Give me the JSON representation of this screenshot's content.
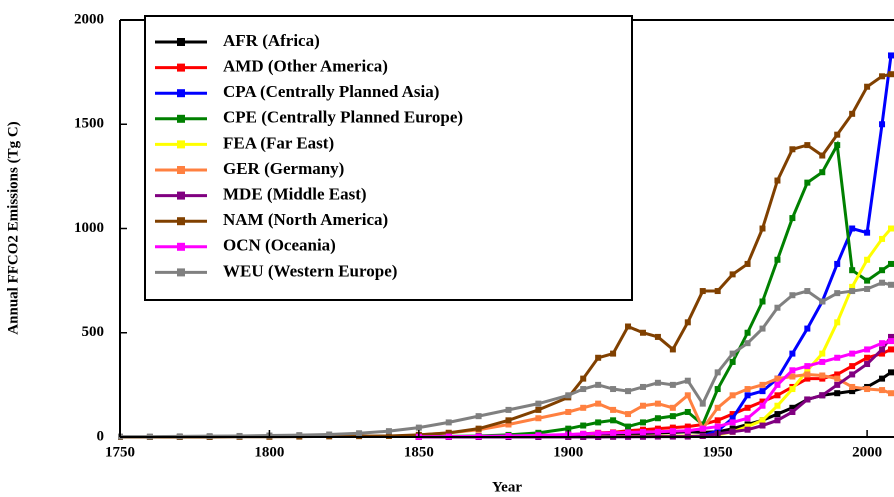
{
  "chart_data": {
    "type": "line",
    "x_label": "Year",
    "y_label": "Annual FFCO2 Emissions (Tg C)",
    "x": [
      1750,
      1760,
      1770,
      1780,
      1790,
      1800,
      1810,
      1820,
      1830,
      1840,
      1850,
      1860,
      1870,
      1880,
      1890,
      1900,
      1905,
      1910,
      1915,
      1920,
      1925,
      1930,
      1935,
      1940,
      1945,
      1950,
      1955,
      1960,
      1965,
      1970,
      1975,
      1980,
      1985,
      1990,
      1995,
      2000,
      2005,
      2008
    ],
    "xlim": [
      1750,
      2009
    ],
    "xticks": [
      1750,
      1800,
      1850,
      1900,
      1950,
      2000
    ],
    "ylim": [
      0,
      2000
    ],
    "yticks": [
      0,
      500,
      1000,
      1500,
      2000
    ],
    "legend": "upper left",
    "series": [
      {
        "name": "AFR (Africa)",
        "color": "#000000",
        "values": [
          null,
          null,
          null,
          null,
          null,
          null,
          null,
          null,
          null,
          null,
          1,
          1,
          2,
          3,
          5,
          7,
          9,
          12,
          13,
          15,
          17,
          20,
          22,
          25,
          22,
          25,
          40,
          60,
          80,
          110,
          140,
          180,
          200,
          210,
          220,
          240,
          280,
          310
        ]
      },
      {
        "name": "AMD (Other America)",
        "color": "#ff0000",
        "values": [
          null,
          null,
          null,
          null,
          null,
          null,
          null,
          null,
          null,
          null,
          1,
          2,
          3,
          5,
          7,
          10,
          15,
          20,
          22,
          30,
          35,
          40,
          45,
          50,
          60,
          80,
          110,
          140,
          170,
          200,
          240,
          280,
          280,
          300,
          340,
          380,
          400,
          420
        ]
      },
      {
        "name": "CPA (Centrally Planned Asia)",
        "color": "#0000ff",
        "values": [
          null,
          null,
          null,
          null,
          null,
          null,
          null,
          null,
          null,
          null,
          0,
          0,
          0,
          0,
          0,
          1,
          1,
          1,
          2,
          2,
          3,
          3,
          4,
          5,
          5,
          30,
          90,
          200,
          220,
          280,
          400,
          520,
          650,
          830,
          1000,
          980,
          1500,
          1830
        ]
      },
      {
        "name": "CPE (Centrally Planned Europe)",
        "color": "#008000",
        "values": [
          null,
          null,
          null,
          null,
          null,
          null,
          null,
          null,
          null,
          null,
          1,
          3,
          5,
          10,
          20,
          40,
          55,
          70,
          80,
          50,
          70,
          90,
          100,
          120,
          60,
          230,
          360,
          500,
          650,
          850,
          1050,
          1220,
          1270,
          1400,
          800,
          750,
          800,
          830
        ]
      },
      {
        "name": "FEA (Far East)",
        "color": "#ffff00",
        "values": [
          null,
          null,
          null,
          null,
          null,
          null,
          null,
          null,
          null,
          null,
          0,
          0,
          0,
          0,
          1,
          1,
          1,
          2,
          2,
          3,
          3,
          4,
          4,
          5,
          5,
          10,
          25,
          50,
          80,
          150,
          230,
          320,
          400,
          550,
          720,
          850,
          950,
          1000
        ]
      },
      {
        "name": "GER (Germany)",
        "color": "#ff8040",
        "values": [
          null,
          null,
          null,
          null,
          null,
          null,
          null,
          null,
          null,
          null,
          10,
          20,
          35,
          60,
          90,
          120,
          140,
          160,
          130,
          110,
          150,
          160,
          140,
          200,
          40,
          140,
          200,
          230,
          250,
          280,
          290,
          300,
          295,
          280,
          240,
          230,
          225,
          210
        ]
      },
      {
        "name": "MDE (Middle East)",
        "color": "#800080",
        "values": [
          null,
          null,
          null,
          null,
          null,
          null,
          null,
          null,
          null,
          null,
          0,
          0,
          0,
          0,
          0,
          0,
          0,
          0,
          1,
          1,
          1,
          2,
          2,
          2,
          5,
          15,
          25,
          35,
          55,
          80,
          120,
          180,
          200,
          250,
          300,
          350,
          420,
          480
        ]
      },
      {
        "name": "NAM (North America)",
        "color": "#804000",
        "values": [
          0,
          0,
          0,
          0,
          1,
          1,
          2,
          3,
          4,
          5,
          10,
          20,
          40,
          80,
          130,
          190,
          280,
          380,
          400,
          530,
          500,
          480,
          420,
          550,
          700,
          700,
          780,
          830,
          1000,
          1230,
          1380,
          1400,
          1350,
          1450,
          1550,
          1680,
          1730,
          1740
        ]
      },
      {
        "name": "OCN (Oceania)",
        "color": "#ff00ff",
        "values": [
          null,
          null,
          null,
          null,
          null,
          null,
          null,
          null,
          null,
          null,
          1,
          2,
          3,
          5,
          8,
          12,
          15,
          18,
          20,
          22,
          24,
          25,
          28,
          30,
          40,
          50,
          70,
          90,
          150,
          250,
          320,
          340,
          360,
          380,
          400,
          420,
          450,
          460
        ]
      },
      {
        "name": "WEU (Western Europe)",
        "color": "#808080",
        "values": [
          2,
          2,
          3,
          4,
          5,
          7,
          9,
          12,
          18,
          28,
          45,
          70,
          100,
          130,
          160,
          200,
          230,
          250,
          230,
          220,
          240,
          260,
          250,
          270,
          160,
          310,
          400,
          450,
          520,
          620,
          680,
          700,
          650,
          690,
          700,
          710,
          740,
          730
        ]
      }
    ]
  }
}
